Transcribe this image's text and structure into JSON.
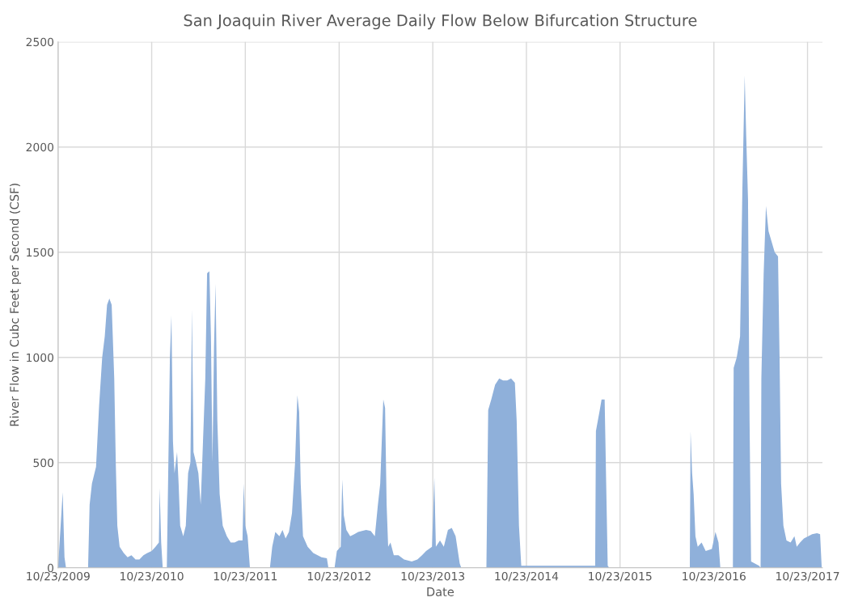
{
  "chart_data": {
    "type": "area",
    "title": "San Joaquin River Average Daily Flow Below Bifurcation Structure",
    "xlabel": "Date",
    "ylabel": "River Flow in Cubc Feet per Second (CSF)",
    "x": [
      "2009-10-23",
      "2009-11-10",
      "2009-11-17",
      "2009-11-23",
      "2010-02-17",
      "2010-02-23",
      "2010-03-04",
      "2010-03-20",
      "2010-04-01",
      "2010-04-13",
      "2010-04-23",
      "2010-05-02",
      "2010-05-11",
      "2010-05-20",
      "2010-05-30",
      "2010-06-05",
      "2010-06-11",
      "2010-06-20",
      "2010-07-06",
      "2010-07-21",
      "2010-08-05",
      "2010-08-21",
      "2010-09-05",
      "2010-09-21",
      "2010-10-06",
      "2010-10-23",
      "2010-11-07",
      "2010-11-20",
      "2010-11-23",
      "2010-11-29",
      "2010-12-05",
      "2010-12-21",
      "2010-12-27",
      "2011-01-02",
      "2011-01-08",
      "2011-01-14",
      "2011-01-20",
      "2011-01-30",
      "2011-02-05",
      "2011-02-11",
      "2011-02-23",
      "2011-03-05",
      "2011-03-14",
      "2011-03-23",
      "2011-03-29",
      "2011-04-04",
      "2011-04-14",
      "2011-04-23",
      "2011-05-02",
      "2011-05-11",
      "2011-05-20",
      "2011-05-27",
      "2011-06-05",
      "2011-06-11",
      "2011-06-17",
      "2011-06-23",
      "2011-06-29",
      "2011-07-06",
      "2011-07-15",
      "2011-07-27",
      "2011-08-12",
      "2011-08-27",
      "2011-09-11",
      "2011-09-27",
      "2011-10-12",
      "2011-10-17",
      "2011-10-23",
      "2011-11-01",
      "2011-11-10",
      "2012-01-27",
      "2012-02-05",
      "2012-02-17",
      "2012-03-04",
      "2012-03-16",
      "2012-03-28",
      "2012-04-10",
      "2012-04-22",
      "2012-05-04",
      "2012-05-13",
      "2012-05-20",
      "2012-05-26",
      "2012-06-04",
      "2012-06-22",
      "2012-07-14",
      "2012-08-15",
      "2012-09-05",
      "2012-09-11",
      "2012-10-05",
      "2012-10-14",
      "2012-10-29",
      "2012-11-04",
      "2012-11-10",
      "2012-11-20",
      "2012-12-05",
      "2012-12-21",
      "2013-01-05",
      "2013-01-20",
      "2013-02-05",
      "2013-02-23",
      "2013-03-11",
      "2013-03-23",
      "2013-04-01",
      "2013-04-13",
      "2013-04-20",
      "2013-04-26",
      "2013-05-02",
      "2013-05-11",
      "2013-05-24",
      "2013-06-11",
      "2013-07-03",
      "2013-08-02",
      "2013-08-24",
      "2013-09-11",
      "2013-09-27",
      "2013-10-20",
      "2013-10-29",
      "2013-11-04",
      "2013-11-20",
      "2013-12-05",
      "2013-12-21",
      "2014-01-05",
      "2014-01-20",
      "2014-02-05",
      "2014-02-11",
      "2014-05-20",
      "2014-05-27",
      "2014-06-08",
      "2014-06-23",
      "2014-07-09",
      "2014-07-24",
      "2014-08-09",
      "2014-08-24",
      "2014-09-08",
      "2014-09-15",
      "2014-09-24",
      "2014-10-03",
      "2015-02-08",
      "2015-07-18",
      "2015-07-21",
      "2015-08-05",
      "2015-08-12",
      "2015-08-24",
      "2015-08-30",
      "2015-09-05",
      "2015-09-11",
      "2016-07-21",
      "2016-07-24",
      "2016-07-30",
      "2016-08-05",
      "2016-08-12",
      "2016-08-21",
      "2016-09-05",
      "2016-09-21",
      "2016-10-15",
      "2016-10-29",
      "2016-11-10",
      "2016-11-17",
      "2017-01-05",
      "2017-01-08",
      "2017-01-20",
      "2017-02-02",
      "2017-02-11",
      "2017-02-20",
      "2017-02-26",
      "2017-03-05",
      "2017-03-11",
      "2017-03-17",
      "2017-04-17",
      "2017-04-23",
      "2017-04-26",
      "2017-05-05",
      "2017-05-14",
      "2017-05-24",
      "2017-06-05",
      "2017-06-17",
      "2017-06-30",
      "2017-07-06",
      "2017-07-12",
      "2017-07-21",
      "2017-08-02",
      "2017-08-18",
      "2017-09-02",
      "2017-09-11",
      "2017-09-24",
      "2017-10-09",
      "2017-10-26",
      "2017-11-10",
      "2017-11-29",
      "2017-12-11",
      "2017-12-17"
    ],
    "series": [
      {
        "color": "#8fb0da",
        "values": [
          0,
          360,
          50,
          0,
          0,
          300,
          400,
          480,
          770,
          1000,
          1100,
          1250,
          1280,
          1250,
          900,
          500,
          200,
          100,
          70,
          50,
          60,
          40,
          40,
          60,
          70,
          80,
          100,
          120,
          380,
          120,
          0,
          0,
          500,
          1000,
          1200,
          600,
          450,
          550,
          400,
          200,
          150,
          200,
          450,
          500,
          1230,
          550,
          500,
          450,
          300,
          600,
          900,
          1400,
          1410,
          1100,
          500,
          1050,
          1350,
          700,
          350,
          200,
          150,
          120,
          120,
          130,
          130,
          400,
          200,
          150,
          0,
          0,
          100,
          170,
          150,
          180,
          140,
          170,
          260,
          500,
          820,
          740,
          400,
          150,
          100,
          70,
          50,
          45,
          0,
          0,
          80,
          100,
          420,
          250,
          180,
          150,
          160,
          170,
          175,
          180,
          175,
          150,
          300,
          400,
          800,
          760,
          300,
          100,
          120,
          60,
          60,
          40,
          30,
          40,
          60,
          80,
          100,
          430,
          100,
          130,
          100,
          180,
          190,
          150,
          20,
          0,
          0,
          750,
          800,
          870,
          900,
          890,
          890,
          900,
          880,
          700,
          200,
          10,
          10,
          10,
          650,
          750,
          800,
          800,
          400,
          10,
          0,
          0,
          650,
          450,
          350,
          150,
          100,
          120,
          80,
          90,
          170,
          120,
          0,
          0,
          950,
          1000,
          1100,
          1800,
          2340,
          2050,
          1750,
          700,
          30,
          10,
          0,
          900,
          1400,
          1720,
          1600,
          1550,
          1500,
          1480,
          1000,
          400,
          200,
          130,
          120,
          150,
          100,
          120,
          140,
          150,
          160,
          165,
          160,
          10
        ]
      }
    ],
    "xlim": [
      "2009-10-23",
      "2017-12-20"
    ],
    "xticks": [
      {
        "value": "2009-10-23",
        "label": "10/23/2009"
      },
      {
        "value": "2010-10-23",
        "label": "10/23/2010"
      },
      {
        "value": "2011-10-23",
        "label": "10/23/2011"
      },
      {
        "value": "2012-10-23",
        "label": "10/23/2012"
      },
      {
        "value": "2013-10-23",
        "label": "10/23/2013"
      },
      {
        "value": "2014-10-23",
        "label": "10/23/2014"
      },
      {
        "value": "2015-10-23",
        "label": "10/23/2015"
      },
      {
        "value": "2016-10-23",
        "label": "10/23/2016"
      },
      {
        "value": "2017-10-23",
        "label": "10/23/2017"
      }
    ],
    "ylim": [
      0,
      2500
    ],
    "yticks": [
      0,
      500,
      1000,
      1500,
      2000,
      2500
    ],
    "grid": true
  }
}
